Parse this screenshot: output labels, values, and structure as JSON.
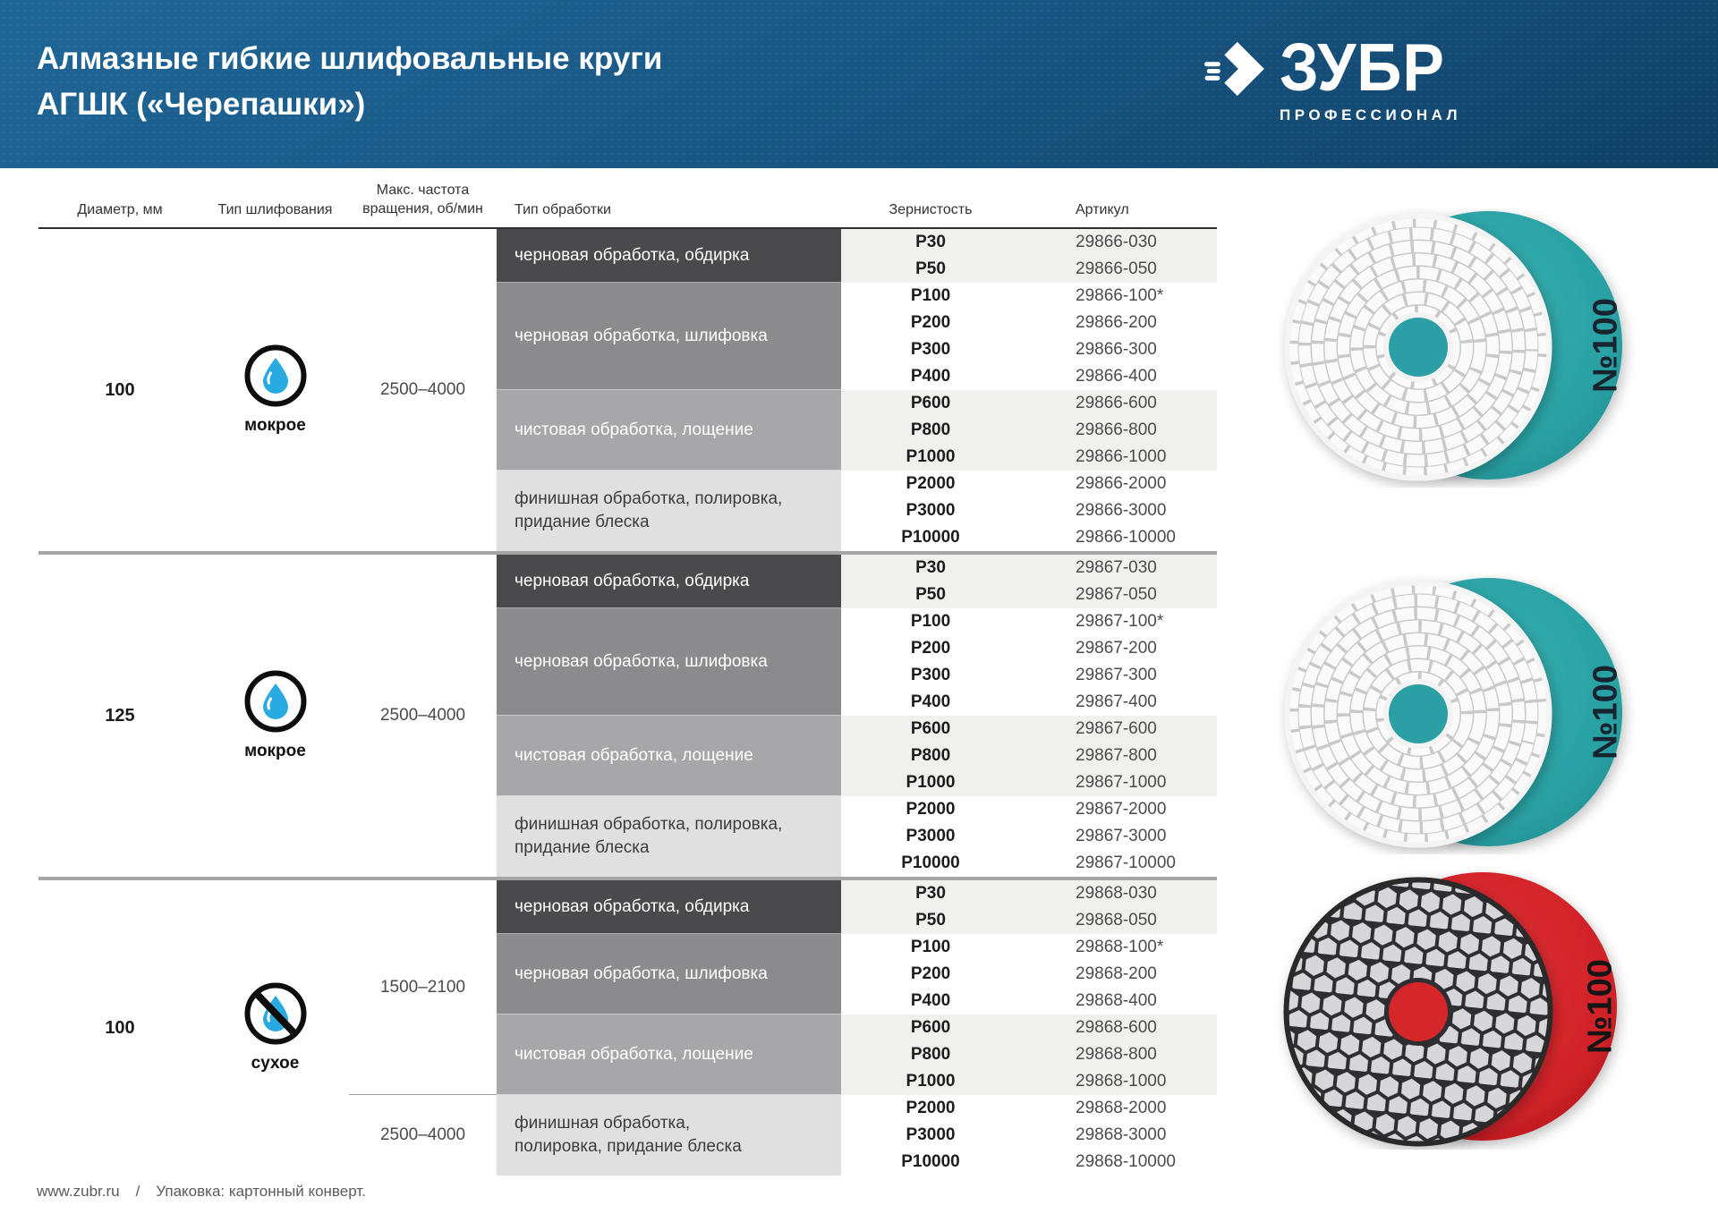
{
  "header": {
    "title_line1": "Алмазные гибкие шлифовальные круги",
    "title_line2": "АГШК («Черепашки»)",
    "brand": "ЗУБР",
    "brand_sub": "ПРОФЕССИОНАЛ"
  },
  "table": {
    "columns": [
      "Диаметр, мм",
      "Тип шлифования",
      "Макс. частота вращения, об/мин",
      "Тип обработки",
      "Зернистость",
      "Артикул"
    ],
    "groups": [
      {
        "diameter": "100",
        "grinding_type": "мокрое",
        "grinding_icon": "water-drop-icon",
        "frequency": "2500–4000",
        "bands": [
          {
            "tone": "dark",
            "label_lines": [
              "черновая обработка, обдирка"
            ],
            "rows": [
              [
                "P30",
                "29866-030"
              ],
              [
                "P50",
                "29866-050"
              ]
            ]
          },
          {
            "tone": "medium",
            "label_lines": [
              "черновая обработка, шлифовка"
            ],
            "rows": [
              [
                "P100",
                "29866-100*"
              ],
              [
                "P200",
                "29866-200"
              ],
              [
                "P300",
                "29866-300"
              ],
              [
                "P400",
                "29866-400"
              ]
            ]
          },
          {
            "tone": "light",
            "label_lines": [
              "чистовая обработка, лощение"
            ],
            "rows": [
              [
                "P600",
                "29866-600"
              ],
              [
                "P800",
                "29866-800"
              ],
              [
                "P1000",
                "29866-1000"
              ]
            ]
          },
          {
            "tone": "lightest",
            "label_lines": [
              "финишная обработка, полировка,",
              "придание блеска"
            ],
            "rows": [
              [
                "P2000",
                "29866-2000"
              ],
              [
                "P3000",
                "29866-3000"
              ],
              [
                "P10000",
                "29866-10000"
              ]
            ]
          }
        ]
      },
      {
        "diameter": "125",
        "grinding_type": "мокрое",
        "grinding_icon": "water-drop-icon",
        "frequency": "2500–4000",
        "bands": [
          {
            "tone": "dark",
            "label_lines": [
              "черновая обработка, обдирка"
            ],
            "rows": [
              [
                "P30",
                "29867-030"
              ],
              [
                "P50",
                "29867-050"
              ]
            ]
          },
          {
            "tone": "medium",
            "label_lines": [
              "черновая обработка, шлифовка"
            ],
            "rows": [
              [
                "P100",
                "29867-100*"
              ],
              [
                "P200",
                "29867-200"
              ],
              [
                "P300",
                "29867-300"
              ],
              [
                "P400",
                "29867-400"
              ]
            ]
          },
          {
            "tone": "light",
            "label_lines": [
              "чистовая обработка, лощение"
            ],
            "rows": [
              [
                "P600",
                "29867-600"
              ],
              [
                "P800",
                "29867-800"
              ],
              [
                "P1000",
                "29867-1000"
              ]
            ]
          },
          {
            "tone": "lightest",
            "label_lines": [
              "финишная обработка, полировка,",
              "придание блеска"
            ],
            "rows": [
              [
                "P2000",
                "29867-2000"
              ],
              [
                "P3000",
                "29867-3000"
              ],
              [
                "P10000",
                "29867-10000"
              ]
            ]
          }
        ]
      },
      {
        "diameter": "100",
        "grinding_type": "сухое",
        "grinding_icon": "no-water-icon",
        "frequency": "1500–2100",
        "frequency2": "2500–4000",
        "bands": [
          {
            "tone": "dark",
            "label_lines": [
              "черновая обработка, обдирка"
            ],
            "rows": [
              [
                "P30",
                "29868-030"
              ],
              [
                "P50",
                "29868-050"
              ]
            ]
          },
          {
            "tone": "medium",
            "label_lines": [
              "черновая обработка, шлифовка"
            ],
            "rows": [
              [
                "P100",
                "29868-100*"
              ],
              [
                "P200",
                "29868-200"
              ],
              [
                "P400",
                "29868-400"
              ]
            ]
          },
          {
            "tone": "light",
            "label_lines": [
              "чистовая обработка, лощение"
            ],
            "rows": [
              [
                "P600",
                "29868-600"
              ],
              [
                "P800",
                "29868-800"
              ],
              [
                "P1000",
                "29868-1000"
              ]
            ]
          },
          {
            "tone": "lightest",
            "label_lines": [
              "финишная обработка,",
              "полировка, придание блеска"
            ],
            "rows": [
              [
                "P2000",
                "29868-2000"
              ],
              [
                "P3000",
                "29868-3000"
              ],
              [
                "P10000",
                "29868-10000"
              ]
            ]
          }
        ]
      }
    ]
  },
  "products": [
    {
      "badge": "№100",
      "style": "wet",
      "backing_color": "#2ba4a6"
    },
    {
      "badge": "№100",
      "style": "wet",
      "backing_color": "#2ba4a6"
    },
    {
      "badge": "№100",
      "style": "dry",
      "backing_color": "#d5262c"
    }
  ],
  "colors": {
    "header_blue": "#1a5a88",
    "drop_blue": "#29abe2",
    "teal": "#2ba4a6",
    "red": "#d5262c",
    "band_dark": "#4a4a4c",
    "band_medium": "#8b8b8d",
    "band_light": "#a7a7a9",
    "band_lightest": "#e0e0e1"
  },
  "footer": {
    "site": "www.zubr.ru",
    "separator": "/",
    "packaging": "Упаковка: картонный конверт."
  }
}
